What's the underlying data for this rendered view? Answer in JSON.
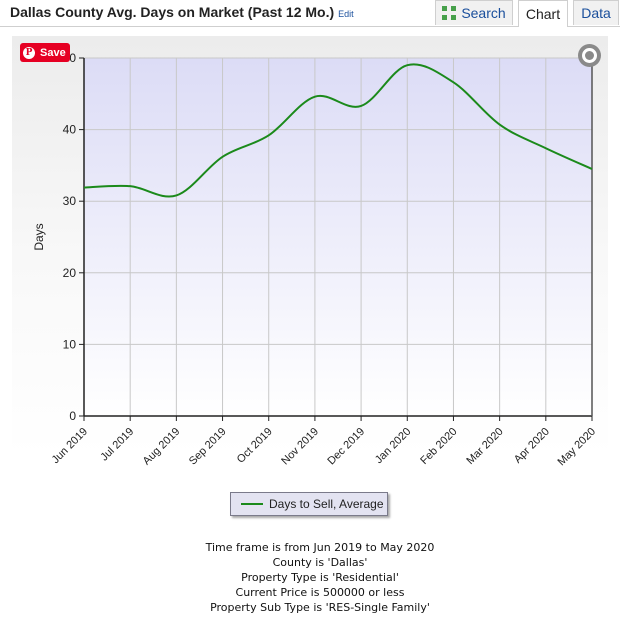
{
  "header": {
    "title": "Dallas County Avg. Days on Market (Past 12 Mo.)",
    "edit_label": "Edit",
    "tabs": {
      "search": "Search",
      "chart": "Chart",
      "data": "Data"
    }
  },
  "save_button": {
    "label": "Save",
    "icon": "pinterest-icon"
  },
  "zoom_button": {
    "icon": "zoom-icon"
  },
  "notes": [
    "Time frame is from Jun 2019 to May 2020",
    "County is 'Dallas'",
    "Property Type is 'Residential'",
    "Current Price is 500000 or less",
    "Property Sub Type is 'RES-Single Family'"
  ],
  "colors": {
    "series": "#1b8a1b",
    "plot_top": "#dcdcf6",
    "plot_bottom": "#ffffff",
    "accent_link": "#1a4f9c",
    "save_red": "#e60023"
  },
  "chart_data": {
    "type": "line",
    "categories": [
      "Jun 2019",
      "Jul 2019",
      "Aug 2019",
      "Sep 2019",
      "Oct 2019",
      "Nov 2019",
      "Dec 2019",
      "Jan 2020",
      "Feb 2020",
      "Mar 2020",
      "Apr 2020",
      "May 2020"
    ],
    "series": [
      {
        "name": "Days to Sell, Average",
        "values": [
          31.9,
          32.1,
          30.8,
          36.2,
          39.2,
          44.6,
          43.3,
          49.0,
          46.6,
          40.7,
          37.4,
          34.5
        ]
      }
    ],
    "ylabel": "Days",
    "xlabel": "",
    "ylim": [
      0,
      50
    ],
    "yticks": [
      0,
      10,
      20,
      30,
      40,
      50
    ],
    "grid": true,
    "legend": "bottom-center"
  }
}
